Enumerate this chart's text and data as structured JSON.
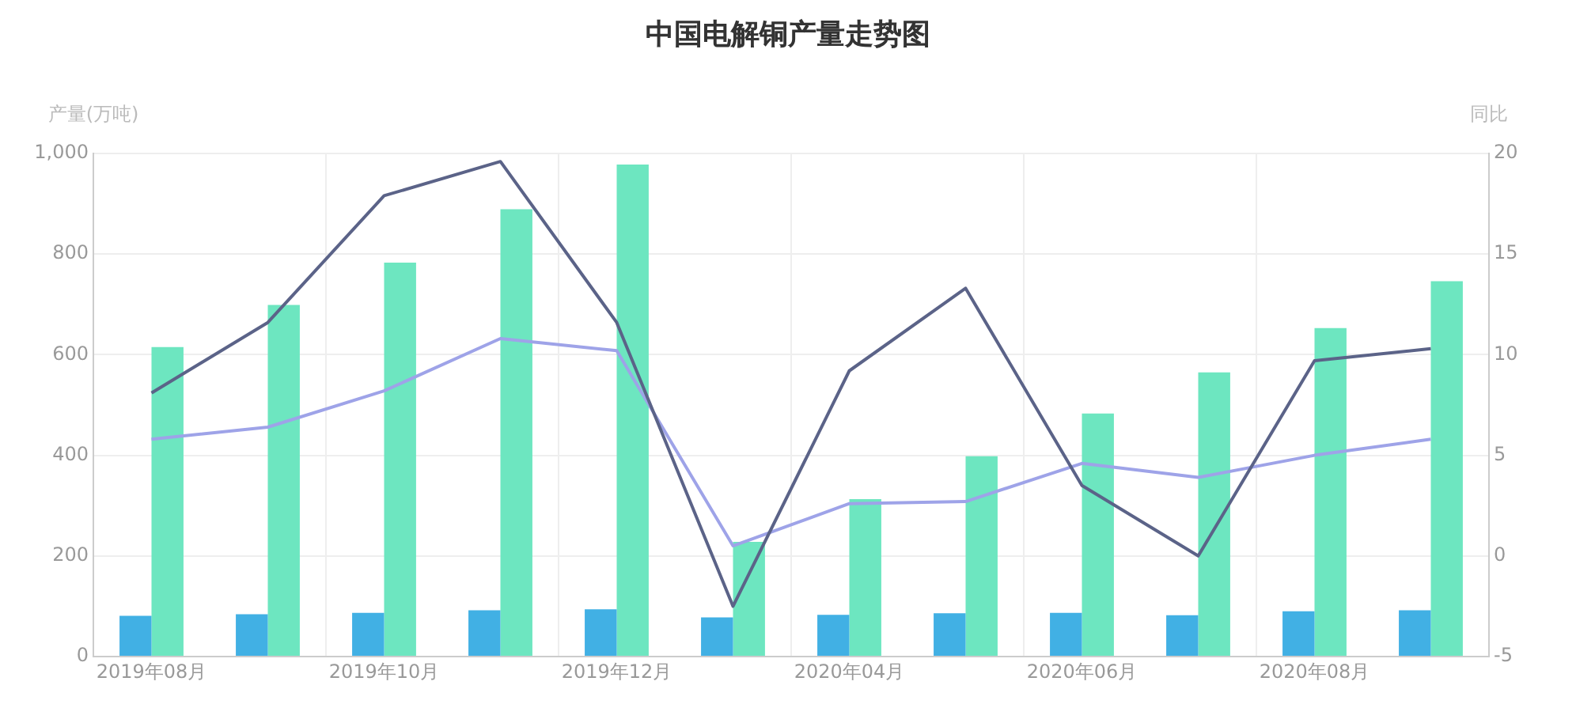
{
  "chart_data": {
    "type": "bar",
    "title": "中国电解铜产量走势图",
    "ylabel": "产量(万吨)",
    "y2label": "同比",
    "categories": [
      "2019年08月",
      null,
      "2019年10月",
      null,
      "2019年12月",
      null,
      "2020年04月",
      null,
      "2020年06月",
      null,
      "2020年08月",
      null
    ],
    "series": [
      {
        "color": "#41b0e4",
        "values": [
          81,
          84,
          87,
          92,
          94,
          78,
          83,
          86,
          87,
          82,
          90,
          92
        ]
      },
      {
        "color": "#6de6c0",
        "values": [
          615,
          699,
          783,
          889,
          978,
          228,
          313,
          398,
          483,
          565,
          653,
          746
        ]
      },
      {
        "type": "line",
        "axis": "y2",
        "color": "#5b6388",
        "values": [
          8.1,
          11.6,
          17.9,
          19.6,
          11.6,
          -2.5,
          9.2,
          13.3,
          3.5,
          0.0,
          9.7,
          10.3
        ]
      },
      {
        "type": "line",
        "axis": "y2",
        "color": "#9ea3e8",
        "values": [
          5.8,
          6.4,
          8.2,
          10.8,
          10.2,
          0.5,
          2.6,
          2.7,
          4.6,
          3.9,
          5.0,
          5.8
        ]
      }
    ],
    "ylim": [
      0,
      1000
    ],
    "yticks": [
      0,
      200,
      400,
      600,
      800,
      {
        "value": 1000,
        "label": "1,000"
      }
    ],
    "y2lim": [
      -5,
      20
    ],
    "y2ticks": [
      -5,
      0,
      5,
      10,
      15,
      20
    ],
    "grid": true,
    "marker": "none",
    "line_style": "solid"
  }
}
